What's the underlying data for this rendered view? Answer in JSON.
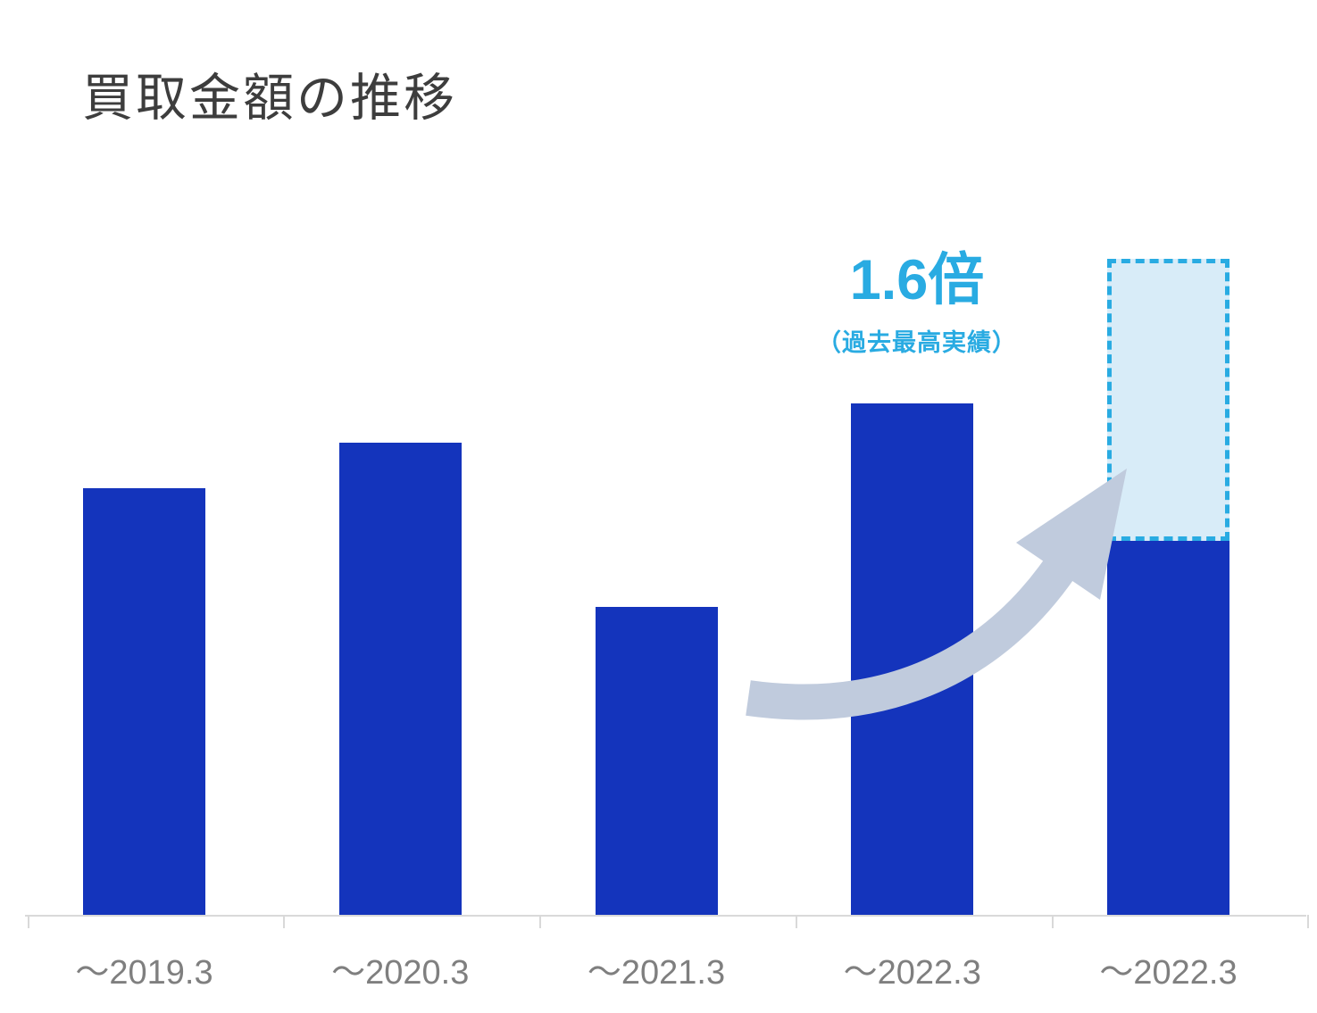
{
  "page": {
    "title": "買取金額の推移"
  },
  "colors": {
    "bar": "#1434bc",
    "accent": "#29abe2",
    "projection_fill": "#d8ecf8",
    "arrow": "#c0cbdd",
    "axis": "#d9d9d9",
    "label": "#7f7f7f",
    "title": "#3d3d3d"
  },
  "annotation": {
    "headline": "1.6倍",
    "subtext": "（過去最高実績）"
  },
  "chart_data": {
    "type": "bar",
    "title": "買取金額の推移",
    "categories": [
      "〜2019.3",
      "〜2020.3",
      "〜2021.3",
      "〜2022.3",
      "〜2022.3"
    ],
    "values": [
      65,
      72,
      47,
      78,
      57
    ],
    "projection": {
      "category_index": 4,
      "total": 100,
      "label": "1.6倍",
      "sublabel": "（過去最高実績）",
      "style": "dashed-outline-light-fill"
    },
    "xlabel": "",
    "ylabel": "",
    "ylim": [
      0,
      100
    ],
    "y_axis_visible": false,
    "grid": false,
    "legend": "none",
    "unit": "relative index (dashed projected total = 100)"
  }
}
